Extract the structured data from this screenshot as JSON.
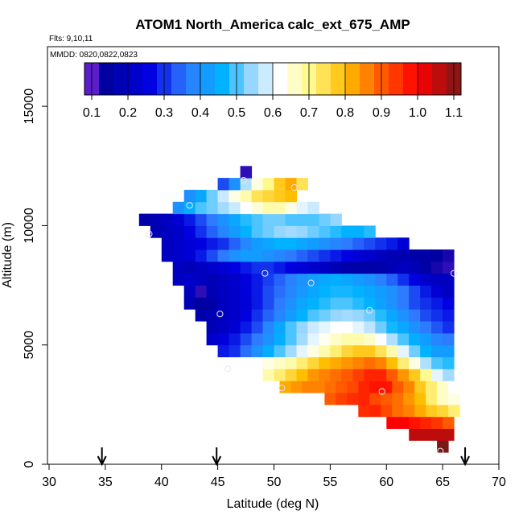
{
  "chart_data": {
    "type": "heatmap",
    "title": "ATOM1 North_America calc_ext_675_AMP",
    "flights_label": "Flts: 9,10,11",
    "mmdd_label": "MMDD: 0820,0822,0823",
    "xlabel": "Latitude (deg N)",
    "ylabel": "Altitude (m)",
    "xlim": [
      30,
      70
    ],
    "ylim": [
      0,
      17500
    ],
    "x_ticks": [
      30,
      35,
      40,
      45,
      50,
      55,
      60,
      65,
      70
    ],
    "y_ticks": [
      0,
      5000,
      10000,
      15000
    ],
    "colorbar": {
      "range": [
        0.08,
        1.12
      ],
      "ticks": [
        0.1,
        0.2,
        0.3,
        0.4,
        0.5,
        0.6,
        0.7,
        0.8,
        0.9,
        1.0,
        1.1
      ],
      "tick_labels": [
        "0.1",
        "0.2",
        "0.3",
        "0.4",
        "0.5",
        "0.6",
        "0.7",
        "0.8",
        "0.9",
        "1.0",
        "1.1"
      ]
    },
    "cell_size": {
      "lat": 1.0,
      "alt": 500
    },
    "rows": [
      {
        "alt": 500,
        "lat_start": 64.5,
        "values": [
          1.12
        ]
      },
      {
        "alt": 1000,
        "lat_start": 62,
        "values": [
          1.06,
          1.06,
          1.06,
          1.06
        ]
      },
      {
        "alt": 1500,
        "lat_start": 60,
        "values": [
          1.0,
          1.0,
          0.98,
          0.96,
          0.94,
          0.9
        ]
      },
      {
        "alt": 2000,
        "lat_start": 57.5,
        "values": [
          0.95,
          0.96,
          0.92,
          0.88,
          0.86,
          0.82,
          0.78,
          0.76,
          0.72
        ]
      },
      {
        "alt": 2500,
        "lat_start": 54.5,
        "values": [
          0.9,
          0.93,
          0.95,
          0.96,
          0.92,
          0.9,
          0.88,
          0.84,
          0.8,
          0.72,
          0.66,
          0.64
        ]
      },
      {
        "alt": 3000,
        "lat_start": 50.5,
        "values": [
          0.82,
          0.84,
          0.86,
          0.86,
          0.88,
          0.9,
          0.92,
          0.96,
          0.98,
          0.98,
          0.9,
          0.86,
          0.78,
          0.72,
          0.66,
          0.62
        ]
      },
      {
        "alt": 3500,
        "lat_start": 49,
        "values": [
          0.68,
          0.72,
          0.76,
          0.8,
          0.84,
          0.86,
          0.88,
          0.9,
          0.93,
          0.96,
          0.96,
          0.9,
          0.84,
          0.78,
          0.7,
          0.6,
          0.55
        ]
      },
      {
        "alt": 4000,
        "lat_start": 48,
        "values": [
          0.62,
          0.64,
          0.66,
          0.68,
          0.72,
          0.76,
          0.8,
          0.82,
          0.84,
          0.86,
          0.88,
          0.86,
          0.8,
          0.72,
          0.64,
          0.56,
          0.5,
          0.48
        ]
      },
      {
        "alt": 4500,
        "lat_start": 45,
        "values": [
          0.28,
          0.3,
          0.35,
          0.4,
          0.45,
          0.5,
          0.55,
          0.6,
          0.64,
          0.68,
          0.72,
          0.76,
          0.78,
          0.78,
          0.74,
          0.68,
          0.6,
          0.52,
          0.46,
          0.42,
          0.42
        ]
      },
      {
        "alt": 5000,
        "lat_start": 44,
        "values": [
          0.22,
          0.25,
          0.28,
          0.32,
          0.36,
          0.4,
          0.45,
          0.5,
          0.55,
          0.6,
          0.63,
          0.66,
          0.68,
          0.68,
          0.66,
          0.62,
          0.56,
          0.5,
          0.45,
          0.42,
          0.38,
          0.36
        ]
      },
      {
        "alt": 5500,
        "lat_start": 44,
        "values": [
          0.18,
          0.2,
          0.24,
          0.28,
          0.32,
          0.38,
          0.44,
          0.5,
          0.54,
          0.58,
          0.6,
          0.62,
          0.62,
          0.6,
          0.57,
          0.52,
          0.47,
          0.44,
          0.4,
          0.36,
          0.33,
          0.3
        ]
      },
      {
        "alt": 6000,
        "lat_start": 43,
        "values": [
          0.16,
          0.18,
          0.2,
          0.22,
          0.26,
          0.3,
          0.34,
          0.38,
          0.42,
          0.46,
          0.5,
          0.52,
          0.54,
          0.55,
          0.54,
          0.52,
          0.48,
          0.44,
          0.4,
          0.36,
          0.32,
          0.3,
          0.28
        ]
      },
      {
        "alt": 6500,
        "lat_start": 42,
        "values": [
          0.18,
          0.14,
          0.15,
          0.2,
          0.22,
          0.24,
          0.28,
          0.32,
          0.36,
          0.4,
          0.44,
          0.46,
          0.48,
          0.5,
          0.5,
          0.48,
          0.46,
          0.43,
          0.4,
          0.36,
          0.32,
          0.3,
          0.28,
          0.26
        ]
      },
      {
        "alt": 7000,
        "lat_start": 42,
        "values": [
          0.2,
          0.12,
          0.18,
          0.2,
          0.22,
          0.25,
          0.28,
          0.32,
          0.35,
          0.38,
          0.41,
          0.44,
          0.46,
          0.47,
          0.47,
          0.46,
          0.44,
          0.42,
          0.4,
          0.36,
          0.32,
          0.28,
          0.24,
          0.2
        ]
      },
      {
        "alt": 7500,
        "lat_start": 41,
        "values": [
          0.2,
          0.22,
          0.2,
          0.18,
          0.2,
          0.22,
          0.25,
          0.28,
          0.31,
          0.34,
          0.37,
          0.4,
          0.42,
          0.44,
          0.45,
          0.44,
          0.42,
          0.4,
          0.37,
          0.34,
          0.3,
          0.26,
          0.22,
          0.2,
          0.2
        ]
      },
      {
        "alt": 8000,
        "lat_start": 41,
        "values": [
          0.2,
          0.18,
          0.2,
          0.22,
          0.24,
          0.26,
          0.28,
          0.3,
          0.3,
          0.28,
          0.26,
          0.24,
          0.22,
          0.2,
          0.18,
          0.16,
          0.15,
          0.15,
          0.16,
          0.18,
          0.2,
          0.18,
          0.15,
          0.13,
          0.12
        ]
      },
      {
        "alt": 8500,
        "lat_start": 40,
        "values": [
          0.2,
          0.22,
          0.24,
          0.28,
          0.32,
          0.36,
          0.4,
          0.42,
          0.42,
          0.4,
          0.38,
          0.36,
          0.34,
          0.32,
          0.3,
          0.28,
          0.26,
          0.24,
          0.22,
          0.2,
          0.18,
          0.17,
          0.16,
          0.15,
          0.14,
          0.13
        ]
      },
      {
        "alt": 9000,
        "lat_start": 40,
        "values": [
          0.2,
          0.22,
          0.24,
          0.26,
          0.28,
          0.3,
          0.34,
          0.38,
          0.42,
          0.44,
          0.46,
          0.46,
          0.44,
          0.42,
          0.4,
          0.38,
          0.36,
          0.34,
          0.32,
          0.3,
          0.28,
          0.24
        ]
      },
      {
        "alt": 9500,
        "lat_start": 39,
        "values": [
          0.18,
          0.2,
          0.22,
          0.26,
          0.3,
          0.34,
          0.38,
          0.42,
          0.46,
          0.5,
          0.52,
          0.54,
          0.55,
          0.54,
          0.52,
          0.5,
          0.48,
          0.46,
          0.46,
          0.48
        ]
      },
      {
        "alt": 10000,
        "lat_start": 38,
        "values": [
          0.16,
          0.18,
          0.2,
          0.24,
          0.28,
          0.32,
          0.36,
          0.4,
          0.44,
          0.48,
          0.5,
          0.52,
          0.52,
          0.5,
          0.5,
          0.5,
          0.52,
          0.54
        ]
      },
      {
        "alt": 10500,
        "lat_start": 41,
        "values": [
          0.4,
          0.45,
          0.5,
          0.52,
          0.55,
          0.58,
          0.62,
          0.65,
          0.68,
          0.68,
          0.64,
          0.6,
          0.58
        ]
      },
      {
        "alt": 11000,
        "lat_start": 42,
        "values": [
          0.4,
          0.44,
          0.52,
          0.58,
          0.64,
          0.68,
          0.74,
          0.76,
          0.78,
          0.8
        ]
      },
      {
        "alt": 11500,
        "lat_start": 45,
        "values": [
          0.32,
          0.4,
          0.56,
          0.64,
          0.7,
          0.78,
          0.82,
          0.74
        ]
      },
      {
        "alt": 12000,
        "lat_start": 47,
        "values": [
          0.12
        ]
      }
    ],
    "markers": [
      {
        "lat": 47.3,
        "alt": 11900
      },
      {
        "lat": 51.8,
        "alt": 11600
      },
      {
        "lat": 42.5,
        "alt": 10850
      },
      {
        "lat": 38.9,
        "alt": 9650
      },
      {
        "lat": 49.2,
        "alt": 8000
      },
      {
        "lat": 53.3,
        "alt": 7600
      },
      {
        "lat": 66.0,
        "alt": 8000
      },
      {
        "lat": 45.2,
        "alt": 6300
      },
      {
        "lat": 58.5,
        "alt": 6450
      },
      {
        "lat": 45.9,
        "alt": 4000
      },
      {
        "lat": 50.7,
        "alt": 3200
      },
      {
        "lat": 59.6,
        "alt": 3050
      },
      {
        "lat": 64.8,
        "alt": 550
      }
    ],
    "arrows_lat": [
      34.7,
      44.9,
      67.0
    ]
  }
}
